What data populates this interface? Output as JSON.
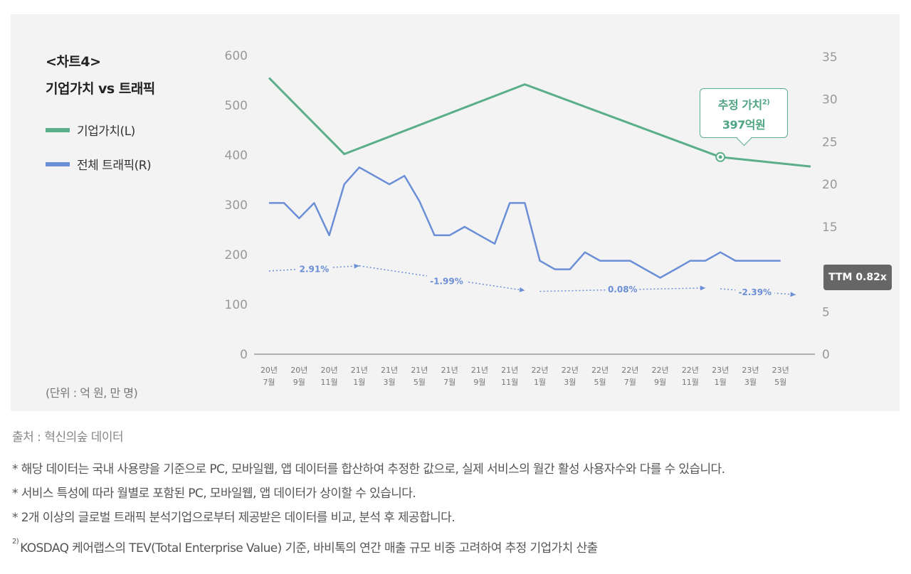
{
  "header": {
    "kicker": "<차트4>",
    "title": "기업가치 vs 트래픽"
  },
  "legend": [
    {
      "label": "기업가치(L)",
      "color": "#5aaf8a"
    },
    {
      "label": "전체 트래픽(R)",
      "color": "#6b8fd6"
    }
  ],
  "unit_note": "(단위 : 억 원, 만 명)",
  "callout": {
    "line1": "추정 가치",
    "footnote_mark": "2)",
    "line2": "397억원"
  },
  "ttm_badge": "TTM 0.82x",
  "source": "출처 : 혁신의숲 데이터",
  "notes": [
    "* 해당 데이터는 국내 사용량을 기준으로 PC, 모바일웹, 앱 데이터를 합산하여 추정한 값으로, 실제 서비스의 월간 활성 사용자수와 다를 수 있습니다.",
    "* 서비스 특성에 따라 월별로 포함된 PC, 모바일웹, 앱 데이터가 상이할 수 있습니다.",
    "* 2개 이상의 글로벌 트래픽 분석기업으로부터 제공받은 데이터를 비교, 분석 후 제공합니다."
  ],
  "footnote": {
    "mark": "2)",
    "text": "KOSDAQ 케어랩스의 TEV(Total Enterprise Value) 기준, 바비톡의 연간 매출 규모 비중 고려하여 추정 기업가치 산출"
  },
  "chart_data": {
    "type": "line",
    "title": "기업가치 vs 트래픽",
    "left_axis": {
      "range": [
        0,
        600
      ],
      "ticks": [
        0,
        100,
        200,
        300,
        400,
        500,
        600
      ]
    },
    "right_axis": {
      "range": [
        0,
        35
      ],
      "ticks": [
        0,
        5,
        10,
        15,
        20,
        25,
        30,
        35
      ]
    },
    "x_ticks": [
      [
        "20년",
        "7월"
      ],
      [
        "20년",
        "9월"
      ],
      [
        "20년",
        "11월"
      ],
      [
        "21년",
        "1월"
      ],
      [
        "21년",
        "3월"
      ],
      [
        "21년",
        "5월"
      ],
      [
        "21년",
        "7월"
      ],
      [
        "21년",
        "9월"
      ],
      [
        "21년",
        "11월"
      ],
      [
        "22년",
        "1월"
      ],
      [
        "22년",
        "3월"
      ],
      [
        "22년",
        "5월"
      ],
      [
        "22년",
        "7월"
      ],
      [
        "22년",
        "9월"
      ],
      [
        "22년",
        "11월"
      ],
      [
        "23년",
        "1월"
      ],
      [
        "23년",
        "3월"
      ],
      [
        "23년",
        "5월"
      ]
    ],
    "x_range": [
      0,
      36
    ],
    "valuation": {
      "name": "기업가치(L)",
      "axis": "left",
      "color": "#5aaf8a",
      "points": [
        [
          0,
          555
        ],
        [
          5,
          402
        ],
        [
          17,
          542
        ],
        [
          30,
          396
        ],
        [
          36,
          377
        ]
      ],
      "marker_point": [
        30,
        396
      ]
    },
    "traffic": {
      "name": "전체 트래픽(R)",
      "axis": "right",
      "color": "#6b8fd6",
      "values": [
        17.8,
        17.8,
        16.0,
        17.8,
        14.0,
        20.0,
        22.0,
        21.0,
        20.0,
        21.0,
        18.0,
        14.0,
        14.0,
        15.0,
        14.0,
        13.0,
        17.8,
        17.8,
        11.0,
        10.0,
        10.0,
        12.0,
        11.0,
        11.0,
        11.0,
        10.0,
        9.0,
        10.0,
        11.0,
        11.0,
        12.0,
        11.0,
        11.0,
        11.0,
        11.0
      ]
    },
    "trend_arrows": [
      {
        "label": "2.91%",
        "from": [
          0,
          9.8
        ],
        "to": [
          6,
          10.4
        ],
        "label_at": [
          3,
          10.0
        ]
      },
      {
        "label": "-1.99%",
        "from": [
          6,
          10.4
        ],
        "to": [
          17,
          7.5
        ],
        "label_at": [
          11.8,
          8.6
        ]
      },
      {
        "label": "0.08%",
        "from": [
          18,
          7.4
        ],
        "to": [
          29,
          7.8
        ],
        "label_at": [
          23.5,
          7.6
        ]
      },
      {
        "label": "-2.39%",
        "from": [
          30,
          7.7
        ],
        "to": [
          35,
          7.0
        ],
        "label_at": [
          32.3,
          7.3
        ]
      }
    ]
  }
}
